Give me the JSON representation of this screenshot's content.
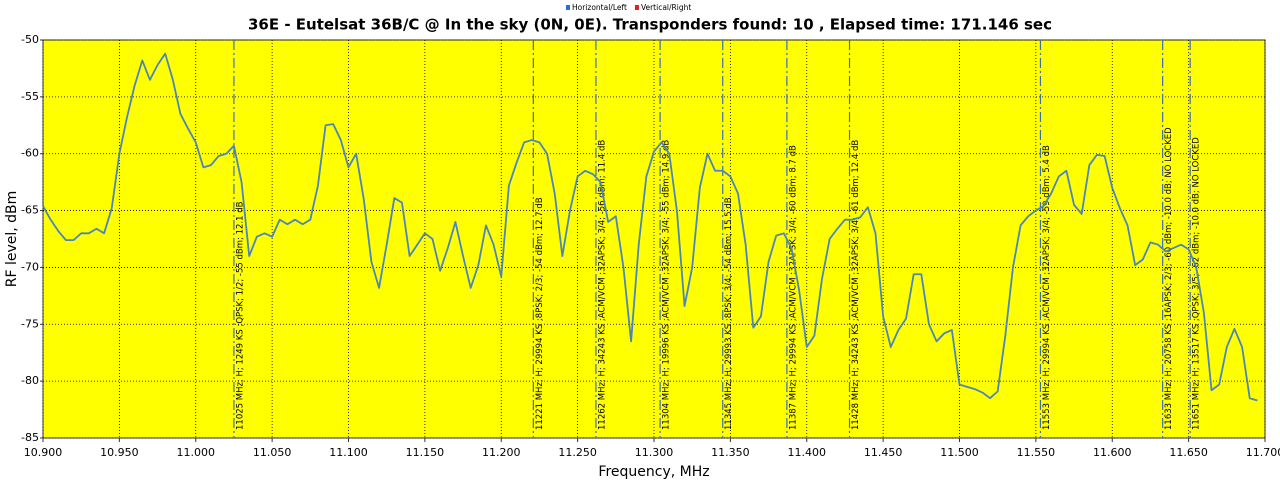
{
  "chart_data": {
    "type": "line",
    "title": "36E - Eutelsat 36B/C @ In the sky (0N, 0E). Transponders found: 10 , Elapsed time: 171.146 sec",
    "x_label": "Frequency, MHz",
    "y_label": "RF level, dBm",
    "legend": [
      {
        "name": "Horizontal/Left",
        "color": "#2a6fd6"
      },
      {
        "name": "Vertical/Right",
        "color": "#e02020"
      }
    ],
    "background": "#ffff00",
    "grid": true,
    "xlim": [
      10.9,
      11.7
    ],
    "ylim": [
      -85,
      -50
    ],
    "xticks": [
      {
        "value": 10.9,
        "label": "10.900"
      },
      {
        "value": 10.95,
        "label": "10.950"
      },
      {
        "value": 11.0,
        "label": "11.000"
      },
      {
        "value": 11.05,
        "label": "11.050"
      },
      {
        "value": 11.1,
        "label": "11.100"
      },
      {
        "value": 11.15,
        "label": "11.150"
      },
      {
        "value": 11.2,
        "label": "11.200"
      },
      {
        "value": 11.25,
        "label": "11.250"
      },
      {
        "value": 11.3,
        "label": "11.300"
      },
      {
        "value": 11.35,
        "label": "11.350"
      },
      {
        "value": 11.4,
        "label": "11.400"
      },
      {
        "value": 11.45,
        "label": "11.450"
      },
      {
        "value": 11.5,
        "label": "11.500"
      },
      {
        "value": 11.55,
        "label": "11.550"
      },
      {
        "value": 11.6,
        "label": "11.600"
      },
      {
        "value": 11.65,
        "label": "11.650"
      },
      {
        "value": 11.7,
        "label": "11.700"
      }
    ],
    "yticks": [
      -50,
      -55,
      -60,
      -65,
      -70,
      -75,
      -80,
      -85
    ],
    "x": [
      10.9,
      10.905,
      10.91,
      10.915,
      10.92,
      10.925,
      10.93,
      10.935,
      10.94,
      10.945,
      10.95,
      10.955,
      10.96,
      10.965,
      10.97,
      10.975,
      10.98,
      10.985,
      10.99,
      10.995,
      11.0,
      11.005,
      11.01,
      11.015,
      11.02,
      11.025,
      11.03,
      11.035,
      11.04,
      11.045,
      11.05,
      11.055,
      11.06,
      11.065,
      11.07,
      11.075,
      11.08,
      11.085,
      11.09,
      11.095,
      11.1,
      11.105,
      11.11,
      11.115,
      11.12,
      11.125,
      11.13,
      11.135,
      11.14,
      11.145,
      11.15,
      11.155,
      11.16,
      11.165,
      11.17,
      11.175,
      11.18,
      11.185,
      11.19,
      11.195,
      11.2,
      11.205,
      11.21,
      11.215,
      11.22,
      11.225,
      11.23,
      11.235,
      11.24,
      11.245,
      11.25,
      11.255,
      11.26,
      11.265,
      11.27,
      11.275,
      11.28,
      11.285,
      11.29,
      11.295,
      11.3,
      11.305,
      11.31,
      11.315,
      11.32,
      11.325,
      11.33,
      11.335,
      11.34,
      11.345,
      11.35,
      11.355,
      11.36,
      11.365,
      11.37,
      11.375,
      11.38,
      11.385,
      11.39,
      11.395,
      11.4,
      11.405,
      11.41,
      11.415,
      11.42,
      11.425,
      11.43,
      11.435,
      11.44,
      11.445,
      11.45,
      11.455,
      11.46,
      11.465,
      11.47,
      11.475,
      11.48,
      11.485,
      11.49,
      11.495,
      11.5,
      11.505,
      11.51,
      11.515,
      11.52,
      11.525,
      11.53,
      11.535,
      11.54,
      11.545,
      11.55,
      11.555,
      11.56,
      11.565,
      11.57,
      11.575,
      11.58,
      11.585,
      11.59,
      11.595,
      11.6,
      11.605,
      11.61,
      11.615,
      11.62,
      11.625,
      11.63,
      11.635,
      11.64,
      11.645,
      11.65,
      11.655,
      11.66,
      11.665,
      11.67,
      11.675,
      11.68,
      11.685,
      11.69,
      11.695
    ],
    "series": [
      {
        "color": "#4a86b8",
        "values": [
          -64.6,
          -65.8,
          -66.8,
          -67.6,
          -67.6,
          -67.0,
          -67.0,
          -66.6,
          -67.0,
          -64.8,
          -60.0,
          -56.8,
          -54.0,
          -51.8,
          -53.5,
          -52.2,
          -51.2,
          -53.5,
          -56.5,
          -57.8,
          -59.0,
          -61.2,
          -61.0,
          -60.2,
          -60.0,
          -59.3,
          -62.5,
          -69.0,
          -67.3,
          -67.0,
          -67.3,
          -65.8,
          -66.2,
          -65.8,
          -66.2,
          -65.8,
          -62.8,
          -57.5,
          -57.4,
          -58.8,
          -61.2,
          -60.0,
          -64.0,
          -69.5,
          -71.8,
          -68.0,
          -63.9,
          -64.3,
          -69.0,
          -68.0,
          -67.0,
          -67.5,
          -70.3,
          -68.3,
          -66.0,
          -69.0,
          -71.8,
          -69.8,
          -66.3,
          -68.0,
          -70.8,
          -62.8,
          -60.8,
          -59.0,
          -58.8,
          -59.0,
          -60.0,
          -63.5,
          -69.0,
          -65.0,
          -62.0,
          -61.5,
          -61.8,
          -62.5,
          -66.0,
          -65.5,
          -70.0,
          -76.5,
          -68.0,
          -62.0,
          -59.8,
          -59.0,
          -60.0,
          -65.0,
          -73.4,
          -70.0,
          -63.0,
          -60.0,
          -61.5,
          -61.5,
          -62.0,
          -63.5,
          -68.0,
          -75.3,
          -74.3,
          -69.5,
          -67.2,
          -67.0,
          -68.3,
          -72.0,
          -77.0,
          -76.0,
          -71.0,
          -67.5,
          -66.6,
          -65.8,
          -65.8,
          -65.6,
          -64.7,
          -67.0,
          -74.3,
          -77.0,
          -75.5,
          -74.5,
          -70.6,
          -70.6,
          -75.0,
          -76.5,
          -75.8,
          -75.5,
          -80.3,
          -80.5,
          -80.7,
          -81.0,
          -81.5,
          -80.9,
          -76.0,
          -70.0,
          -66.3,
          -65.5,
          -65.0,
          -64.6,
          -63.5,
          -62.0,
          -61.5,
          -64.5,
          -65.3,
          -61.0,
          -60.1,
          -60.2,
          -63.0,
          -64.8,
          -66.3,
          -69.8,
          -69.3,
          -67.8,
          -68.0,
          -68.6,
          -68.3,
          -68.0,
          -68.4,
          -70.0,
          -74.0,
          -80.8,
          -80.3,
          -77.0,
          -75.4,
          -77.0,
          -81.5,
          -81.7
        ]
      }
    ],
    "markers": [
      {
        "x": 11.025,
        "label": "11025 MHz; H; 1249 KS ;QPSK; 1/2; -55 dBm; 12.1 dB"
      },
      {
        "x": 11.221,
        "label": "11221 MHz; H; 29994 KS ;8PSK; 2/3; -54 dBm; 12.7 dB"
      },
      {
        "x": 11.262,
        "label": "11262 MHz; H; 34243 KS ;ACM/VCM ;32APSK; 3/4; -56 dBm; 11.4 dB"
      },
      {
        "x": 11.304,
        "label": "11304 MHz; H; 19996 KS ;ACM/VCM ;32APSK; 3/4; -55 dBm; 14.9 dB"
      },
      {
        "x": 11.345,
        "label": "11345 MHz; H; 29993 KS ;8PSK; 3/4; -54 dBm; 15.5 dB"
      },
      {
        "x": 11.387,
        "label": "11387 MHz; H; 29994 KS ;ACM/VCM ;32APSK; 3/4; -60 dBm; 8.7 dB"
      },
      {
        "x": 11.428,
        "label": "11428 MHz; H; 34243 KS ;ACM/VCM ;32APSK; 3/4; -61 dBm; 12.4 dB"
      },
      {
        "x": 11.553,
        "label": "11553 MHz; H; 29994 KS ;ACM/VCM ;32APSK; 3/4; -59 dBm; 5.4 dB"
      },
      {
        "x": 11.633,
        "label": "11633 MHz; H; 20758 KS ;16APSK; 2/3; -60 dBm; -10.0 dB; NO LOCKED"
      },
      {
        "x": 11.651,
        "label": "11651 MHz; H; 13517 KS ;QPSK; 3/5; -62 dBm; -10.0 dB; NO LOCKED"
      }
    ]
  }
}
